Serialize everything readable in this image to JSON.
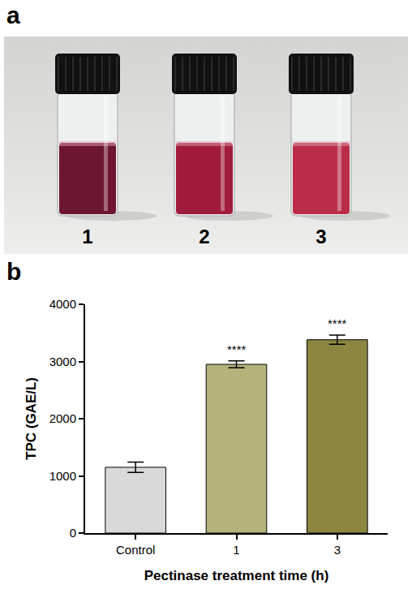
{
  "panel_labels": [
    "a",
    "b"
  ],
  "photo": {
    "vial_labels": [
      "1",
      "2",
      "3"
    ]
  },
  "chart_data": {
    "type": "bar",
    "categories": [
      "Control",
      "1",
      "3"
    ],
    "values": [
      1150,
      2950,
      3380
    ],
    "errors": [
      90,
      60,
      80
    ],
    "colors": [
      "#d9d9d9",
      "#b5b27c",
      "#8c8641"
    ],
    "x_label": "Pectinase treatment time (h)",
    "y_label": "TPC (GAE/L)",
    "ylim": [
      0,
      4000
    ],
    "yticks": [
      0,
      1000,
      2000,
      3000,
      4000
    ],
    "grid": false,
    "annotations": [
      {
        "category": "1",
        "text": "****"
      },
      {
        "category": "3",
        "text": "****"
      }
    ]
  }
}
